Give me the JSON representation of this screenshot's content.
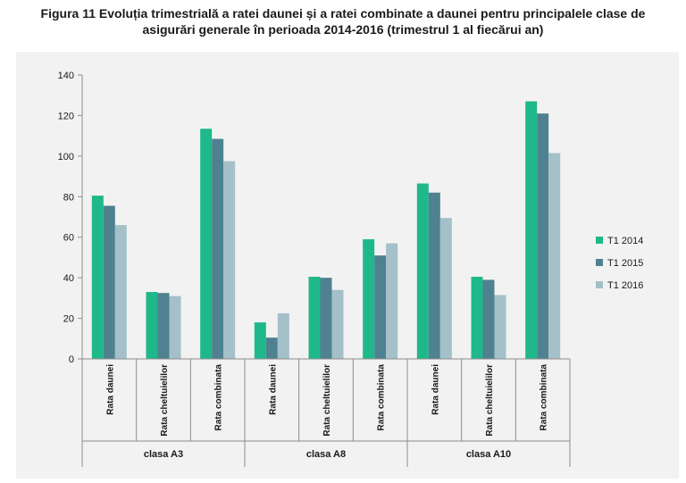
{
  "title": {
    "line1": "Figura 11 Evoluția trimestrială a ratei daunei și a ratei combinate a daunei pentru principalele clase de",
    "line2": "asigurări generale în perioada 2014-2016 (trimestrul 1 al fiecărui an)"
  },
  "chart_data": {
    "type": "bar",
    "title": "Figura 11 Evoluția trimestrială a ratei daunei și a ratei combinate a daunei pentru principalele clase de asigurări generale în perioada 2014-2016 (trimestrul 1 al fiecărui an)",
    "groups": [
      {
        "name": "clasa A3",
        "categories": [
          "Rata daunei",
          "Rata cheltuielilor",
          "Rata combinata"
        ]
      },
      {
        "name": "clasa A8",
        "categories": [
          "Rata daunei",
          "Rata cheltuielilor",
          "Rata combinata"
        ]
      },
      {
        "name": "clasa A10",
        "categories": [
          "Rata daunei",
          "Rata cheltuielilor",
          "Rata combinata"
        ]
      }
    ],
    "series": [
      {
        "name": "T1 2014",
        "color": "#1fb88a",
        "values": [
          80.5,
          33,
          113.5,
          18,
          40.5,
          59,
          86.5,
          40.5,
          127
        ]
      },
      {
        "name": "T1 2015",
        "color": "#4f8190",
        "values": [
          75.5,
          32.5,
          108.5,
          10.5,
          40,
          51,
          82,
          39,
          121
        ]
      },
      {
        "name": "T1 2016",
        "color": "#a4c0c8",
        "values": [
          66,
          31,
          97.5,
          22.5,
          34,
          57,
          69.5,
          31.5,
          101.5
        ]
      }
    ],
    "ylim": [
      0,
      140
    ],
    "yticks": [
      0,
      20,
      40,
      60,
      80,
      100,
      120,
      140
    ],
    "grid": false,
    "legend": "right"
  }
}
